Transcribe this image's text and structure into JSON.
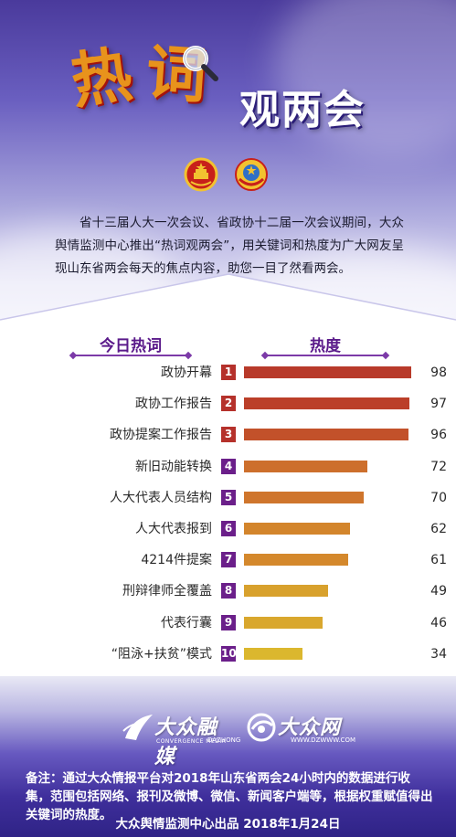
{
  "header": {
    "hero_char_1": "热",
    "hero_char_2": "词",
    "hero_subtitle": "观两会",
    "intro": "省十三届人大一次会议、省政协十二届一次会议期间，大众舆情监测中心推出“热词观两会”，用关键词和热度为广大网友呈现山东省两会每天的焦点内容，助您一目了然看两会。"
  },
  "chart_data": {
    "type": "bar",
    "orientation": "horizontal",
    "title": "",
    "column_headers": [
      "今日热词",
      "热度"
    ],
    "categories": [
      "政协开幕",
      "政协工作报告",
      "政协提案工作报告",
      "新旧动能转换",
      "人大代表人员结构",
      "人大代表报到",
      "4214件提案",
      "刑辩律师全覆盖",
      "代表行囊",
      "“阻泳+扶贫”模式"
    ],
    "ranks": [
      "1",
      "2",
      "3",
      "4",
      "5",
      "6",
      "7",
      "8",
      "9",
      "10"
    ],
    "values": [
      98,
      97,
      96,
      72,
      70,
      62,
      61,
      49,
      46,
      34
    ],
    "xlim": [
      0,
      100
    ],
    "grid": false,
    "legend": "none",
    "rank_colors": [
      "#b5312b",
      "#b5312b",
      "#b5312b",
      "#6b1f8a",
      "#6b1f8a",
      "#6b1f8a",
      "#6b1f8a",
      "#6b1f8a",
      "#6b1f8a",
      "#6b1f8a"
    ],
    "bar_colors": [
      "#b83a2a",
      "#bb3f29",
      "#c2512a",
      "#cd6f2c",
      "#cf752c",
      "#d3852c",
      "#d4882c",
      "#d8a12d",
      "#d9a72d",
      "#dbb72e"
    ]
  },
  "footer": {
    "logo_dazhong_cn": "大众融媒",
    "logo_dazhong_en": "DAZHONG",
    "logo_dazhong_en2": "CONVERGENCE MEDIA",
    "logo_dzw_cn": "大众网",
    "logo_dzw_en": "WWW.DZWWW.COM",
    "note": "备注：通过大众情报平台对2018年山东省两会24小时内的数据进行收集，范围包括网络、报刊及微博、微信、新闻客户端等，根据权重赋值得出关键词的热度。",
    "credit": "大众舆情监测中心出品 2018年1月24日"
  }
}
